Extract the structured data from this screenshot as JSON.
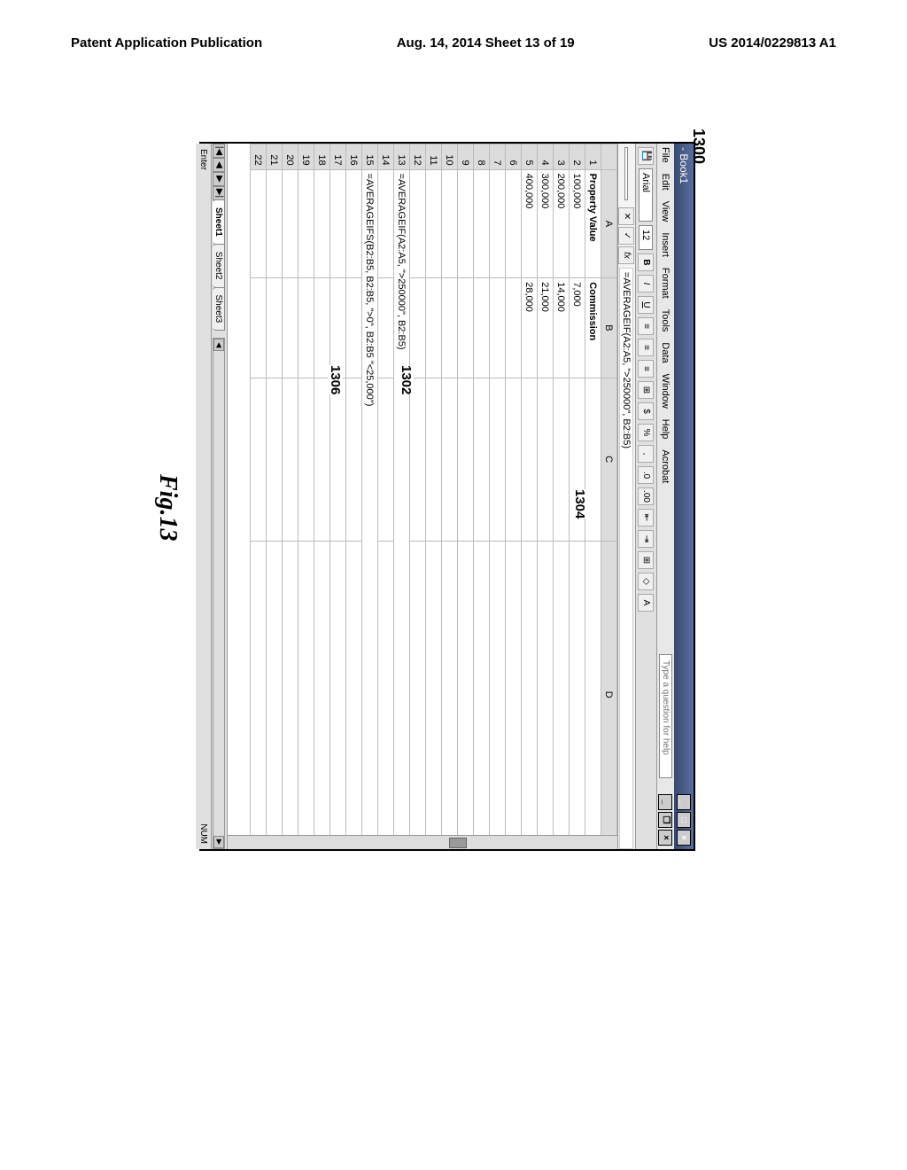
{
  "page_header": {
    "left": "Patent Application Publication",
    "center": "Aug. 14, 2014  Sheet 13 of 19",
    "right": "US 2014/0229813 A1"
  },
  "figure": {
    "ref_main": "1300",
    "caption": "Fig.13",
    "callouts": {
      "c1302": "1302",
      "c1304": "1304",
      "c1306": "1306"
    }
  },
  "window": {
    "title": "- Book1",
    "min": "_",
    "max": "□",
    "close": "×"
  },
  "menu": {
    "items": [
      "File",
      "Edit",
      "View",
      "Insert",
      "Format",
      "Tools",
      "Data",
      "Window",
      "Help",
      "Acrobat"
    ],
    "help_placeholder": "Type a question for help",
    "doc_min": "_",
    "doc_restore": "❐",
    "doc_close": "×"
  },
  "toolbar": {
    "font_name": "Arial",
    "font_size": "12",
    "bold": "B",
    "italic": "I",
    "underline": "U",
    "align_left": "≡",
    "align_center": "≡",
    "align_right": "≡",
    "merge": "⊞",
    "currency": "$",
    "percent": "%",
    "comma": ",",
    "inc_dec": ".0",
    "dec_dec": ".00",
    "indent_dec": "⇤",
    "indent_inc": "⇥",
    "borders": "⊞",
    "fill": "◇",
    "font_color": "A"
  },
  "formula_bar": {
    "name_box": "",
    "cancel": "✕",
    "accept": "✓",
    "fx": "fx",
    "formula": "=AVERAGEIF(A2:A5, \">250000\", B2:B5)"
  },
  "sheet": {
    "col_headers": [
      "A",
      "B",
      "C",
      "D"
    ],
    "row_count": 22,
    "rows": [
      {
        "n": 1,
        "a": "Property Value",
        "b": "Commission",
        "bold": true
      },
      {
        "n": 2,
        "a": "100,000",
        "b": "7,000"
      },
      {
        "n": 3,
        "a": "200,000",
        "b": "14,000"
      },
      {
        "n": 4,
        "a": "300,000",
        "b": "21,000"
      },
      {
        "n": 5,
        "a": "400,000",
        "b": "28,000"
      },
      {
        "n": 6
      },
      {
        "n": 7
      },
      {
        "n": 8
      },
      {
        "n": 9
      },
      {
        "n": 10
      },
      {
        "n": 11
      },
      {
        "n": 12
      },
      {
        "n": 13,
        "a": "=AVERAGEIF(A2:A5, \">250000\", B2:B5)"
      },
      {
        "n": 14
      },
      {
        "n": 15,
        "a": "=AVERAGEIFS(B2:B5, B2:B5, \">0\", B2:B5 \"<25,000\")"
      },
      {
        "n": 16
      },
      {
        "n": 17
      },
      {
        "n": 18
      },
      {
        "n": 19
      },
      {
        "n": 20
      },
      {
        "n": 21
      },
      {
        "n": 22
      }
    ]
  },
  "tabs": {
    "nav_first": "|◀",
    "nav_prev": "◀",
    "nav_next": "▶",
    "nav_last": "▶|",
    "sheets": [
      "Sheet1",
      "Sheet2",
      "Sheet3"
    ],
    "active": 0,
    "hscroll_left": "◀",
    "hscroll_right": "▶"
  },
  "status": {
    "left": "Enter",
    "right": "NUM"
  }
}
